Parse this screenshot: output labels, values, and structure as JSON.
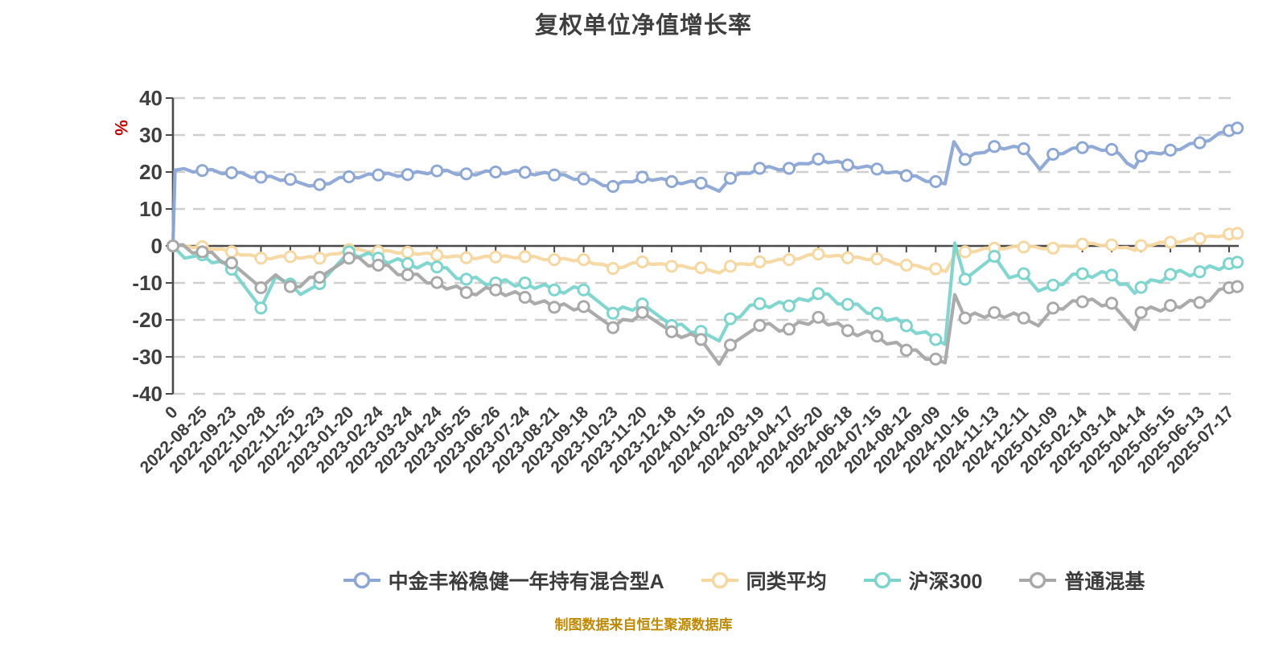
{
  "chart": {
    "background": "#ffffff",
    "axis_color": "#4a4a4a",
    "grid_color": "#cfcfcf",
    "label_color": "#3f3f3f",
    "title_color": "#3f3f3f",
    "unit_color": "#cc0000",
    "source_color": "#bf8900"
  },
  "chart_data": {
    "type": "line",
    "title": "复权单位净值增长率",
    "y_unit": "%",
    "source_note": "制图数据来自恒生聚源数据库",
    "ylim": [
      -40,
      40
    ],
    "y_ticks": [
      40,
      30,
      20,
      10,
      0,
      -10,
      -20,
      -30,
      -40
    ],
    "grid": "horizontal-dashed",
    "legend_position": "bottom",
    "x_tick_labels": [
      "0",
      "2022-08-25",
      "2022-09-23",
      "2022-10-28",
      "2022-11-25",
      "2022-12-23",
      "2023-01-20",
      "2023-02-24",
      "2023-03-24",
      "2023-04-24",
      "2023-05-25",
      "2023-06-26",
      "2023-07-24",
      "2023-08-21",
      "2023-09-18",
      "2023-10-23",
      "2023-11-20",
      "2023-12-18",
      "2024-01-15",
      "2024-02-20",
      "2024-03-19",
      "2024-04-17",
      "2024-05-20",
      "2024-06-18",
      "2024-07-15",
      "2024-08-12",
      "2024-09-09",
      "2024-10-16",
      "2024-11-13",
      "2024-12-11",
      "2025-01-09",
      "2025-02-14",
      "2025-03-14",
      "2025-04-14",
      "2025-05-15",
      "2025-06-13",
      "2025-07-17"
    ],
    "series": [
      {
        "key": "fund_a",
        "name": "中金丰裕稳健一年持有混合型A",
        "color": "#8ca7d6",
        "values": [
          0,
          20.4,
          19.8,
          18.6,
          18.0,
          16.6,
          18.7,
          19.2,
          19.3,
          20.3,
          19.5,
          20.0,
          19.9,
          19.2,
          18.1,
          16.1,
          18.6,
          17.4,
          17.0,
          18.3,
          21.0,
          21.0,
          23.5,
          21.9,
          20.8,
          19.0,
          17.4,
          23.4,
          26.9,
          26.3,
          24.8,
          26.6,
          26.1,
          24.3,
          25.9,
          27.9,
          31.2
        ],
        "extra_points": [
          [
            0.07,
            20.5
          ],
          [
            4.65,
            16.2
          ],
          [
            18.62,
            14.8
          ],
          [
            26.32,
            16.8
          ],
          [
            26.62,
            28.2
          ],
          [
            29.55,
            20.7
          ],
          [
            32.78,
            21.2
          ],
          [
            36.28,
            31.9
          ]
        ]
      },
      {
        "key": "peer_avg",
        "name": "同类平均",
        "color": "#f6d7a0",
        "values": [
          0,
          -0.2,
          -1.6,
          -3.3,
          -2.9,
          -3.3,
          -1.0,
          -1.5,
          -1.7,
          -2.5,
          -3.2,
          -3.0,
          -2.9,
          -3.7,
          -3.7,
          -6.1,
          -4.3,
          -5.5,
          -5.9,
          -5.5,
          -4.3,
          -3.7,
          -2.2,
          -3.2,
          -3.5,
          -5.2,
          -6.2,
          -1.6,
          -0.6,
          -0.3,
          -0.6,
          0.5,
          0.3,
          0.1,
          1.0,
          2.0,
          3.2
        ],
        "extra_points": [
          [
            18.62,
            -7.3
          ],
          [
            26.35,
            -6.9
          ],
          [
            26.7,
            -1.8
          ],
          [
            32.78,
            -1.2
          ],
          [
            36.28,
            3.4
          ]
        ]
      },
      {
        "key": "csi300",
        "name": "沪深300",
        "color": "#7cd5cd",
        "values": [
          0,
          -2.4,
          -6.3,
          -16.8,
          -10.3,
          -10.2,
          -1.6,
          -3.3,
          -4.8,
          -5.7,
          -9.0,
          -10.0,
          -10.0,
          -11.9,
          -11.9,
          -18.2,
          -15.7,
          -21.5,
          -23.1,
          -19.7,
          -15.6,
          -16.2,
          -12.9,
          -15.8,
          -18.2,
          -21.6,
          -25.3,
          -9.0,
          -2.8,
          -7.5,
          -10.6,
          -7.5,
          -7.9,
          -11.2,
          -7.7,
          -7.0,
          -4.8
        ],
        "extra_points": [
          [
            0.4,
            -3.3
          ],
          [
            3.5,
            -8.3
          ],
          [
            4.35,
            -13.1
          ],
          [
            18.62,
            -25.7
          ],
          [
            26.32,
            -26.6
          ],
          [
            26.65,
            0.8
          ],
          [
            28.5,
            -8.6
          ],
          [
            29.5,
            -12.2
          ],
          [
            32.78,
            -12.8
          ],
          [
            36.28,
            -4.4
          ]
        ]
      },
      {
        "key": "ordinary_hybrid",
        "name": "普通混基",
        "color": "#a8a8a8",
        "values": [
          0,
          -1.6,
          -4.6,
          -11.3,
          -11.0,
          -8.5,
          -3.3,
          -5.2,
          -7.8,
          -9.9,
          -12.6,
          -11.9,
          -13.9,
          -16.6,
          -16.4,
          -22.1,
          -18.0,
          -23.2,
          -25.3,
          -26.8,
          -21.5,
          -22.5,
          -19.3,
          -22.9,
          -24.4,
          -28.2,
          -30.6,
          -19.5,
          -18.0,
          -19.5,
          -16.8,
          -15.1,
          -15.5,
          -18.0,
          -16.1,
          -15.3,
          -11.3
        ],
        "extra_points": [
          [
            3.5,
            -7.8
          ],
          [
            18.62,
            -32.0
          ],
          [
            26.32,
            -31.6
          ],
          [
            26.65,
            -13.2
          ],
          [
            29.5,
            -21.6
          ],
          [
            32.78,
            -22.6
          ],
          [
            36.28,
            -11.0
          ]
        ]
      }
    ]
  }
}
